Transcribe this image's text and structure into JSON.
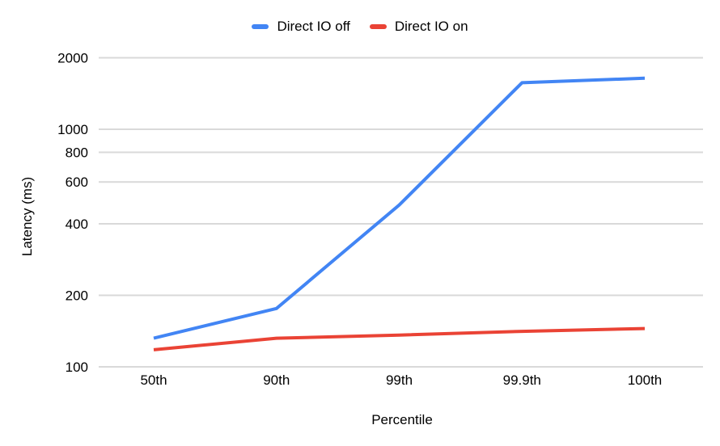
{
  "chart_data": {
    "type": "line",
    "title": "",
    "xlabel": "Percentile",
    "ylabel": "Latency (ms)",
    "x": [
      "50th",
      "90th",
      "99th",
      "99.9th",
      "100th"
    ],
    "series": [
      {
        "name": "Direct IO off",
        "color": "#4285F4",
        "values": [
          132,
          176,
          480,
          1570,
          1640
        ]
      },
      {
        "name": "Direct IO on",
        "color": "#EA4335",
        "values": [
          118,
          132,
          136,
          141,
          145
        ]
      }
    ],
    "yscale": "log",
    "yticks": [
      100,
      200,
      400,
      600,
      800,
      1000,
      2000
    ],
    "ylim": [
      100,
      2600
    ],
    "grid": "horizontal-only",
    "gridline_color": "#D9D9D9",
    "legend_position": "top",
    "background_color": "#FFFFFF",
    "text_color": "#000000"
  }
}
